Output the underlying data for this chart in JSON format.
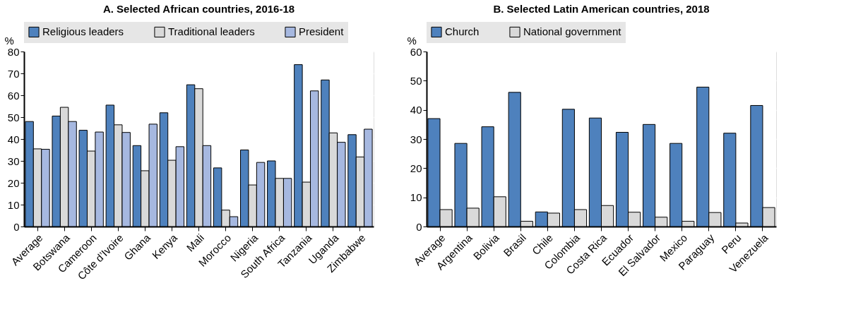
{
  "chart_data": [
    {
      "type": "bar",
      "title": "A. Selected African countries, 2016-18",
      "ylabel": "%",
      "categories": [
        "Average",
        "Botswana",
        "Cameroon",
        "Côte d’Ivoire",
        "Ghana",
        "Kenya",
        "Mali",
        "Morocco",
        "Nigeria",
        "South Africa",
        "Tanzania",
        "Uganda",
        "Zimbabwe"
      ],
      "series": [
        {
          "name": "Religious leaders",
          "color": "#4e81bd",
          "values": [
            48,
            50.5,
            44,
            55.5,
            37,
            52,
            64.8,
            26.8,
            35,
            30,
            74,
            67,
            42
          ]
        },
        {
          "name": "Traditional leaders",
          "color": "#d9d9d9",
          "values": [
            35.5,
            54.5,
            34.5,
            46.5,
            25.5,
            30.3,
            63,
            7.5,
            19,
            22,
            20.3,
            42.8,
            31.8
          ]
        },
        {
          "name": "President",
          "color": "#a6b8e0",
          "values": [
            35.3,
            48,
            43.2,
            43,
            46.8,
            36.5,
            37,
            4.5,
            29.3,
            22,
            62,
            38.5,
            44.5
          ]
        }
      ],
      "ylim": [
        0,
        80
      ],
      "yticks": [
        0,
        10,
        20,
        30,
        40,
        50,
        60,
        70,
        80
      ],
      "grid": "y",
      "legend": "top"
    },
    {
      "type": "bar",
      "title": "B. Selected Latin American countries, 2018",
      "ylabel": "%",
      "categories": [
        "Average",
        "Argentina",
        "Bolivia",
        "Brasil",
        "Chile",
        "Colombia",
        "Costa Rica",
        "Ecuador",
        "El Salvador",
        "Mexico",
        "Paraguay",
        "Peru",
        "Venezuela"
      ],
      "series": [
        {
          "name": "Church",
          "color": "#4e81bd",
          "values": [
            37,
            28.5,
            34.2,
            46,
            5,
            40.2,
            37.2,
            32.3,
            35,
            28.5,
            47.8,
            32,
            41.5
          ]
        },
        {
          "name": "National government",
          "color": "#d9d9d9",
          "values": [
            5.8,
            6.3,
            10.2,
            1.8,
            4.6,
            5.8,
            7.2,
            4.9,
            3.2,
            1.8,
            4.8,
            1.2,
            6.5
          ]
        }
      ],
      "ylim": [
        0,
        60
      ],
      "yticks": [
        0,
        10,
        20,
        30,
        40,
        50,
        60
      ],
      "grid": "y",
      "legend": "top"
    }
  ]
}
